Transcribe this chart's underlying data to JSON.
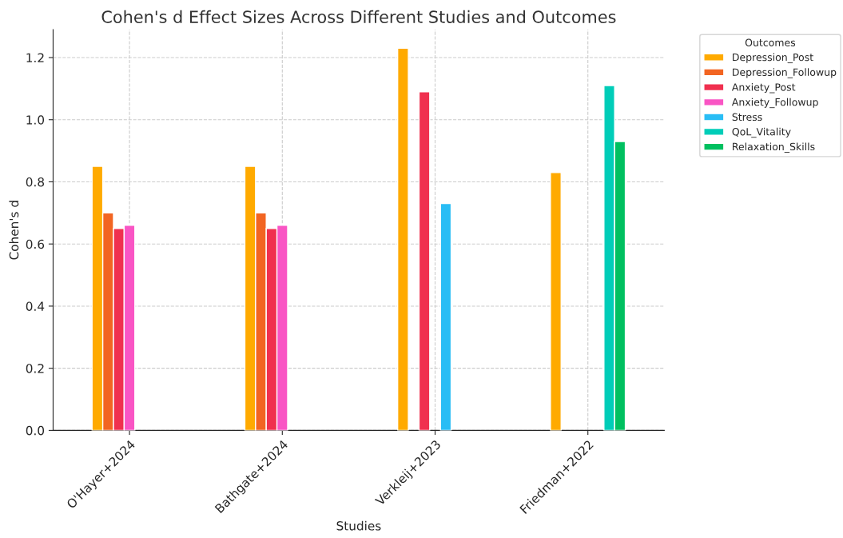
{
  "chart_data": {
    "type": "bar",
    "title": "Cohen's d Effect Sizes Across Different Studies and Outcomes",
    "xlabel": "Studies",
    "ylabel": "Cohen's d",
    "legend_title": "Outcomes",
    "categories": [
      "O'Hayer+2024",
      "Bathgate+2024",
      "Verkleij+2023",
      "Friedman+2022"
    ],
    "series": [
      {
        "name": "Depression_Post",
        "color": "#ffaa00",
        "values": [
          0.85,
          0.85,
          1.23,
          0.83
        ]
      },
      {
        "name": "Depression_Followup",
        "color": "#f26522",
        "values": [
          0.7,
          0.7,
          null,
          null
        ]
      },
      {
        "name": "Anxiety_Post",
        "color": "#f0304f",
        "values": [
          0.65,
          0.65,
          1.09,
          null
        ]
      },
      {
        "name": "Anxiety_Followup",
        "color": "#f955c4",
        "values": [
          0.66,
          0.66,
          null,
          null
        ]
      },
      {
        "name": "Stress",
        "color": "#29bdf5",
        "values": [
          null,
          null,
          0.73,
          null
        ]
      },
      {
        "name": "QoL_Vitality",
        "color": "#00cdb8",
        "values": [
          null,
          null,
          null,
          1.11
        ]
      },
      {
        "name": "Relaxation_Skills",
        "color": "#00c060",
        "values": [
          null,
          null,
          null,
          0.93
        ]
      }
    ],
    "ylim": [
      0,
      1.29
    ],
    "yticks": [
      {
        "value": 0,
        "label": "0.0"
      },
      {
        "value": 0.2,
        "label": "0.2"
      },
      {
        "value": 0.4,
        "label": "0.4"
      },
      {
        "value": 0.6,
        "label": "0.6"
      },
      {
        "value": 0.8,
        "label": "0.8"
      },
      {
        "value": 1.0,
        "label": "1.0"
      },
      {
        "value": 1.2,
        "label": "1.2"
      }
    ],
    "grid": true,
    "legend": "top right"
  }
}
